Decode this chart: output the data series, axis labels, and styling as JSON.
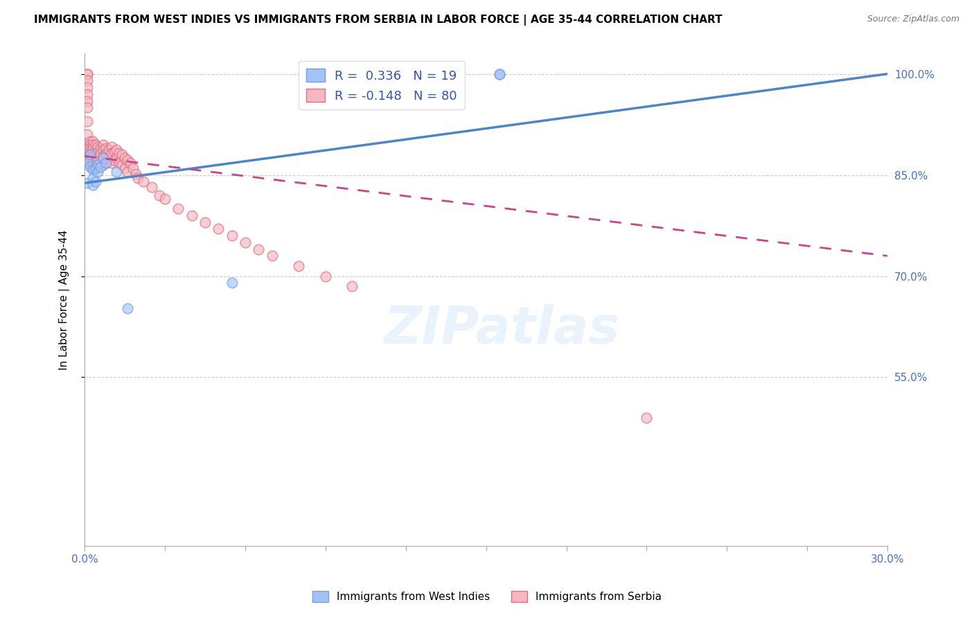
{
  "title": "IMMIGRANTS FROM WEST INDIES VS IMMIGRANTS FROM SERBIA IN LABOR FORCE | AGE 35-44 CORRELATION CHART",
  "source": "Source: ZipAtlas.com",
  "xlim": [
    0.0,
    0.3
  ],
  "ylim": [
    0.3,
    1.03
  ],
  "x_tick_vals": [
    0.0,
    0.3
  ],
  "x_tick_labels": [
    "0.0%",
    "30.0%"
  ],
  "y_tick_vals": [
    0.55,
    0.7,
    0.85,
    1.0
  ],
  "y_tick_labels": [
    "55.0%",
    "70.0%",
    "85.0%",
    "100.0%"
  ],
  "west_indies_R": 0.336,
  "west_indies_N": 19,
  "serbia_R": -0.148,
  "serbia_N": 80,
  "legend_label_1": "Immigrants from West Indies",
  "legend_label_2": "Immigrants from Serbia",
  "ylabel": "In Labor Force | Age 35-44",
  "watermark": "ZIPatlas",
  "blue_fill": "#a4c2f4",
  "blue_edge": "#6d9eeb",
  "pink_fill": "#f4b8c1",
  "pink_edge": "#e06c84",
  "blue_line_color": "#4a86c8",
  "pink_line_color": "#cc4488",
  "wi_line_x0": 0.0,
  "wi_line_y0": 0.838,
  "wi_line_x1": 0.3,
  "wi_line_y1": 1.0,
  "sr_line_x0": 0.0,
  "sr_line_y0": 0.878,
  "sr_line_x1": 0.3,
  "sr_line_y1": 0.73,
  "west_indies_x": [
    0.001,
    0.001,
    0.002,
    0.002,
    0.003,
    0.003,
    0.003,
    0.004,
    0.004,
    0.005,
    0.005,
    0.006,
    0.007,
    0.008,
    0.012,
    0.016,
    0.055,
    0.155,
    0.155
  ],
  "west_indies_y": [
    0.87,
    0.838,
    0.88,
    0.862,
    0.858,
    0.845,
    0.835,
    0.86,
    0.84,
    0.865,
    0.855,
    0.862,
    0.875,
    0.868,
    0.855,
    0.652,
    0.69,
    1.0,
    1.0
  ],
  "serbia_x": [
    0.001,
    0.001,
    0.001,
    0.001,
    0.001,
    0.001,
    0.001,
    0.001,
    0.001,
    0.001,
    0.002,
    0.002,
    0.002,
    0.002,
    0.002,
    0.002,
    0.002,
    0.002,
    0.003,
    0.003,
    0.003,
    0.003,
    0.003,
    0.003,
    0.004,
    0.004,
    0.004,
    0.004,
    0.004,
    0.005,
    0.005,
    0.005,
    0.005,
    0.006,
    0.006,
    0.006,
    0.007,
    0.007,
    0.007,
    0.007,
    0.008,
    0.008,
    0.008,
    0.009,
    0.009,
    0.01,
    0.01,
    0.01,
    0.011,
    0.011,
    0.012,
    0.012,
    0.013,
    0.013,
    0.014,
    0.014,
    0.015,
    0.015,
    0.016,
    0.016,
    0.017,
    0.018,
    0.019,
    0.02,
    0.022,
    0.025,
    0.028,
    0.03,
    0.035,
    0.04,
    0.045,
    0.05,
    0.055,
    0.06,
    0.065,
    0.07,
    0.08,
    0.09,
    0.1,
    0.21
  ],
  "serbia_y": [
    1.0,
    1.0,
    0.99,
    0.98,
    0.97,
    0.96,
    0.95,
    0.93,
    0.91,
    0.89,
    0.9,
    0.895,
    0.89,
    0.885,
    0.88,
    0.875,
    0.87,
    0.865,
    0.9,
    0.895,
    0.89,
    0.88,
    0.87,
    0.86,
    0.895,
    0.888,
    0.88,
    0.87,
    0.86,
    0.892,
    0.885,
    0.875,
    0.862,
    0.89,
    0.882,
    0.87,
    0.895,
    0.888,
    0.878,
    0.865,
    0.89,
    0.88,
    0.868,
    0.888,
    0.875,
    0.892,
    0.882,
    0.868,
    0.885,
    0.872,
    0.888,
    0.875,
    0.882,
    0.868,
    0.88,
    0.865,
    0.875,
    0.86,
    0.872,
    0.855,
    0.868,
    0.86,
    0.852,
    0.845,
    0.84,
    0.832,
    0.82,
    0.815,
    0.8,
    0.79,
    0.78,
    0.77,
    0.76,
    0.75,
    0.74,
    0.73,
    0.715,
    0.7,
    0.685,
    0.49
  ]
}
